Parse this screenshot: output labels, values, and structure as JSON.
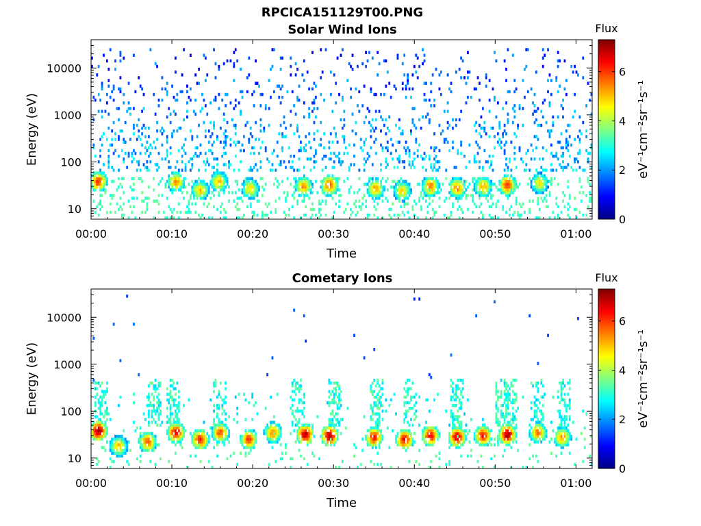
{
  "figure": {
    "title": "RPCICA151129T00.PNG"
  },
  "colormap": [
    "#000083",
    "#0000ff",
    "#0080ff",
    "#00ffff",
    "#80ff80",
    "#ffff00",
    "#ff8000",
    "#ff0000",
    "#800000"
  ],
  "chart_data": [
    {
      "type": "heatmap",
      "title": "Solar Wind Ions",
      "xlabel": "Time",
      "ylabel": "Energy (eV)",
      "x_ticks": [
        "00:00",
        "00:10",
        "00:20",
        "00:30",
        "00:40",
        "00:50",
        "01:00"
      ],
      "x_tick_minutes": [
        0,
        10,
        20,
        30,
        40,
        50,
        60
      ],
      "xlim_minutes": [
        0,
        62
      ],
      "y_scale": "log",
      "y_ticks": [
        "10",
        "100",
        "1000",
        "10000"
      ],
      "y_tick_values": [
        10,
        100,
        1000,
        10000
      ],
      "ylim": [
        6,
        40000
      ],
      "colorbar": {
        "title": "Flux",
        "label": "eV⁻¹cm⁻²sr⁻¹s⁻¹",
        "range": [
          0,
          7.3
        ],
        "ticks": [
          "0",
          "2",
          "4",
          "6"
        ],
        "tick_values": [
          0,
          2,
          4,
          6
        ]
      },
      "hot_bursts": [
        {
          "minute": 0.9,
          "energy": 38,
          "flux": 6.0
        },
        {
          "minute": 10.5,
          "energy": 38,
          "flux": 5.3
        },
        {
          "minute": 13.5,
          "energy": 25,
          "flux": 5.0
        },
        {
          "minute": 15.8,
          "energy": 38,
          "flux": 5.0
        },
        {
          "minute": 19.7,
          "energy": 27,
          "flux": 4.8
        },
        {
          "minute": 26.3,
          "energy": 30,
          "flux": 5.3
        },
        {
          "minute": 29.5,
          "energy": 32,
          "flux": 5.8
        },
        {
          "minute": 35.2,
          "energy": 27,
          "flux": 5.2
        },
        {
          "minute": 38.5,
          "energy": 24,
          "flux": 4.8
        },
        {
          "minute": 42.0,
          "energy": 30,
          "flux": 5.5
        },
        {
          "minute": 45.3,
          "energy": 28,
          "flux": 5.5
        },
        {
          "minute": 48.5,
          "energy": 30,
          "flux": 5.2
        },
        {
          "minute": 51.5,
          "energy": 32,
          "flux": 6.0
        },
        {
          "minute": 55.5,
          "energy": 35,
          "flux": 4.6
        }
      ],
      "background": {
        "energy_range": [
          60,
          25000
        ],
        "flux_range": [
          1.5,
          3.0
        ]
      }
    },
    {
      "type": "heatmap",
      "title": "Cometary Ions",
      "xlabel": "Time",
      "ylabel": "Energy (eV)",
      "x_ticks": [
        "00:00",
        "00:10",
        "00:20",
        "00:30",
        "00:40",
        "00:50",
        "01:00"
      ],
      "x_tick_minutes": [
        0,
        10,
        20,
        30,
        40,
        50,
        60
      ],
      "xlim_minutes": [
        0,
        62
      ],
      "y_scale": "log",
      "y_ticks": [
        "10",
        "100",
        "1000",
        "10000"
      ],
      "y_tick_values": [
        10,
        100,
        1000,
        10000
      ],
      "ylim": [
        6,
        40000
      ],
      "colorbar": {
        "title": "Flux",
        "label": "eV⁻¹cm⁻²sr⁻¹s⁻¹",
        "range": [
          0,
          7.3
        ],
        "ticks": [
          "0",
          "2",
          "4",
          "6"
        ],
        "tick_values": [
          0,
          2,
          4,
          6
        ]
      },
      "hot_bursts": [
        {
          "minute": 0.9,
          "energy": 38,
          "flux": 7.0
        },
        {
          "minute": 3.4,
          "energy": 18,
          "flux": 5.0
        },
        {
          "minute": 7.0,
          "energy": 22,
          "flux": 5.8
        },
        {
          "minute": 10.5,
          "energy": 35,
          "flux": 6.5
        },
        {
          "minute": 13.5,
          "energy": 25,
          "flux": 6.3
        },
        {
          "minute": 16.0,
          "energy": 35,
          "flux": 5.8
        },
        {
          "minute": 19.5,
          "energy": 25,
          "flux": 6.0
        },
        {
          "minute": 22.5,
          "energy": 35,
          "flux": 5.5
        },
        {
          "minute": 26.5,
          "energy": 32,
          "flux": 6.8
        },
        {
          "minute": 29.5,
          "energy": 30,
          "flux": 7.0
        },
        {
          "minute": 35.0,
          "energy": 28,
          "flux": 6.3
        },
        {
          "minute": 38.8,
          "energy": 25,
          "flux": 6.5
        },
        {
          "minute": 42.0,
          "energy": 30,
          "flux": 6.5
        },
        {
          "minute": 45.3,
          "energy": 28,
          "flux": 6.7
        },
        {
          "minute": 48.5,
          "energy": 30,
          "flux": 6.3
        },
        {
          "minute": 51.5,
          "energy": 32,
          "flux": 7.0
        },
        {
          "minute": 55.3,
          "energy": 35,
          "flux": 5.5
        },
        {
          "minute": 58.3,
          "energy": 28,
          "flux": 5.3
        }
      ],
      "plumes_minutes": [
        1.2,
        7.8,
        10.2,
        15.9,
        25.7,
        30.1,
        35.4,
        39.5,
        45.2,
        50.8,
        51.8,
        55.2,
        58.5
      ],
      "background": {
        "energy_range": [
          60,
          400
        ],
        "flux_range": [
          1.8,
          3.2
        ]
      }
    }
  ]
}
